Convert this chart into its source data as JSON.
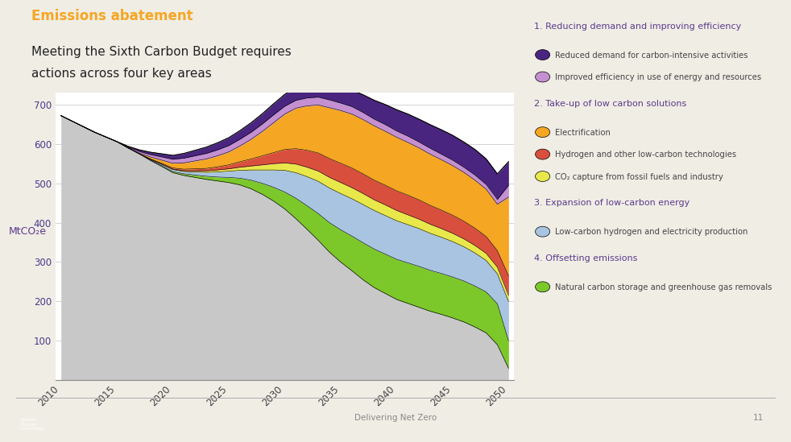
{
  "title_line1": "Emissions abatement",
  "title_line2": "Meeting the Sixth Carbon Budget requires\nactions across four key areas",
  "ylabel": "MtCO₂e",
  "background_color": "#f0ede5",
  "chart_bg": "#ffffff",
  "years": [
    2010,
    2011,
    2012,
    2013,
    2014,
    2015,
    2016,
    2017,
    2018,
    2019,
    2020,
    2021,
    2022,
    2023,
    2024,
    2025,
    2026,
    2027,
    2028,
    2029,
    2030,
    2031,
    2032,
    2033,
    2034,
    2035,
    2036,
    2037,
    2038,
    2039,
    2040,
    2041,
    2042,
    2043,
    2044,
    2045,
    2046,
    2047,
    2048,
    2049,
    2050
  ],
  "grey_remaining": [
    672,
    658,
    644,
    630,
    618,
    606,
    590,
    575,
    558,
    543,
    527,
    520,
    515,
    510,
    506,
    502,
    496,
    486,
    472,
    455,
    435,
    410,
    383,
    355,
    325,
    300,
    278,
    255,
    235,
    220,
    205,
    195,
    185,
    175,
    167,
    158,
    148,
    135,
    120,
    90,
    30
  ],
  "layers": {
    "natural_carbon": {
      "color": "#7cc82a",
      "label": "Natural carbon storage and greenhouse gas removals",
      "values": [
        0,
        0,
        0,
        0,
        0,
        0,
        0,
        0,
        1,
        2,
        3,
        4,
        6,
        8,
        10,
        13,
        17,
        22,
        28,
        35,
        43,
        52,
        60,
        68,
        75,
        82,
        88,
        94,
        98,
        100,
        102,
        103,
        104,
        104,
        104,
        104,
        104,
        104,
        104,
        104,
        70
      ]
    },
    "low_carbon_energy": {
      "color": "#a8c4e0",
      "label": "Low-carbon hydrogen and electricity production",
      "values": [
        0,
        0,
        0,
        0,
        0,
        0,
        0,
        0,
        2,
        3,
        5,
        6,
        8,
        10,
        13,
        16,
        20,
        26,
        34,
        44,
        55,
        65,
        74,
        82,
        88,
        92,
        95,
        97,
        98,
        98,
        98,
        97,
        96,
        94,
        92,
        90,
        87,
        84,
        80,
        76,
        100
      ]
    },
    "ccs": {
      "color": "#e8e84a",
      "label": "CO₂ capture from fossil fuels and industry",
      "values": [
        0,
        0,
        0,
        0,
        0,
        0,
        0,
        0,
        0,
        1,
        1,
        2,
        3,
        4,
        5,
        6,
        8,
        10,
        13,
        16,
        19,
        22,
        24,
        26,
        27,
        28,
        28,
        28,
        27,
        27,
        26,
        25,
        24,
        23,
        22,
        21,
        20,
        19,
        18,
        17,
        15
      ]
    },
    "hydrogen": {
      "color": "#d94f3d",
      "label": "Hydrogen and other low-carbon technologies",
      "values": [
        0,
        0,
        0,
        0,
        0,
        0,
        0,
        0,
        1,
        2,
        3,
        4,
        5,
        6,
        8,
        10,
        14,
        18,
        23,
        28,
        34,
        39,
        43,
        46,
        48,
        49,
        50,
        50,
        50,
        50,
        50,
        50,
        49,
        48,
        47,
        46,
        45,
        44,
        43,
        42,
        50
      ]
    },
    "electrification": {
      "color": "#f5a623",
      "label": "Electrification",
      "values": [
        0,
        0,
        0,
        0,
        0,
        0,
        0,
        2,
        5,
        8,
        12,
        16,
        20,
        24,
        28,
        33,
        40,
        50,
        62,
        76,
        90,
        103,
        113,
        122,
        129,
        134,
        137,
        138,
        138,
        137,
        136,
        134,
        132,
        130,
        128,
        126,
        124,
        122,
        120,
        118,
        200
      ]
    },
    "efficiency": {
      "color": "#c490d1",
      "label": "Improved efficiency in use of energy and resources",
      "values": [
        0,
        0,
        0,
        0,
        0,
        0,
        2,
        4,
        6,
        8,
        10,
        12,
        13,
        14,
        15,
        16,
        17,
        18,
        19,
        20,
        20,
        20,
        20,
        20,
        20,
        19,
        19,
        18,
        17,
        17,
        16,
        16,
        15,
        15,
        14,
        14,
        13,
        13,
        12,
        12,
        30
      ]
    },
    "reduced_demand": {
      "color": "#4a2580",
      "label": "Reduced demand for carbon-intensive activities",
      "values": [
        0,
        0,
        0,
        0,
        0,
        0,
        2,
        4,
        6,
        8,
        10,
        12,
        14,
        16,
        18,
        20,
        22,
        24,
        26,
        28,
        30,
        32,
        34,
        36,
        38,
        40,
        42,
        45,
        48,
        51,
        54,
        56,
        58,
        60,
        62,
        63,
        64,
        65,
        65,
        65,
        60
      ]
    }
  },
  "section_headers": {
    "section1": "1. Reducing demand and improving efficiency",
    "section2": "2. Take-up of low carbon solutions",
    "section3": "3. Expansion of low-carbon energy",
    "section4": "4. Offsetting emissions"
  },
  "ylim": [
    0,
    730
  ],
  "yticks": [
    0,
    100,
    200,
    300,
    400,
    500,
    600,
    700
  ],
  "title_color": "#6b3fa0",
  "text_color": "#5b3a8c",
  "footer_text": "Delivering Net Zero",
  "page_num": "11"
}
